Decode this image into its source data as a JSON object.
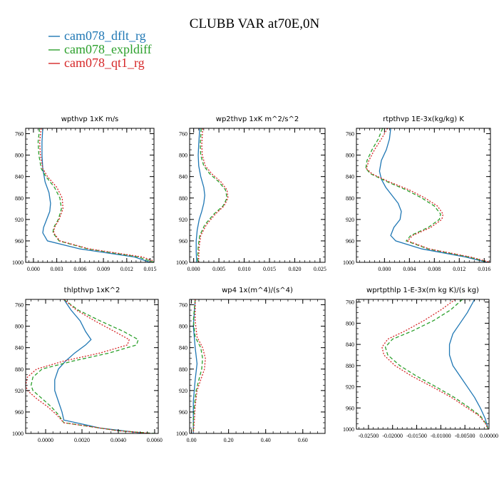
{
  "figure": {
    "title": "CLUBB VAR at70E,0N",
    "legend": [
      {
        "label": "cam078_dflt_rg",
        "color": "#1f77b4",
        "dash": "solid"
      },
      {
        "label": "cam078_expldiff",
        "color": "#2ca02c",
        "dash": "dashed"
      },
      {
        "label": "cam078_qt1_rg",
        "color": "#d62728",
        "dash": "dotted"
      }
    ]
  },
  "chart_data": [
    {
      "type": "line",
      "title": "wpthvp   1xK m/s",
      "xlim": [
        -0.001,
        0.0155
      ],
      "ylim": [
        1000,
        750
      ],
      "xticks": [
        0.0,
        0.003,
        0.006,
        0.009,
        0.012,
        0.015
      ],
      "xtick_labels": [
        "0.000",
        "0.003",
        "0.006",
        "0.009",
        "0.012",
        "0.015"
      ],
      "yticks": [
        760,
        800,
        840,
        880,
        920,
        960,
        1000
      ],
      "series": [
        {
          "name": "cam078_dflt_rg",
          "y": [
            750,
            775,
            800,
            825,
            850,
            870,
            890,
            905,
            920,
            935,
            945,
            960,
            975,
            990,
            1000
          ],
          "x": [
            0.0012,
            0.0011,
            0.0011,
            0.0012,
            0.0015,
            0.002,
            0.0022,
            0.0021,
            0.0017,
            0.0013,
            0.0012,
            0.0018,
            0.006,
            0.013,
            0.015
          ]
        },
        {
          "name": "cam078_expldiff",
          "y": [
            750,
            775,
            800,
            825,
            840,
            860,
            880,
            900,
            920,
            935,
            945,
            960,
            975,
            990,
            1000
          ],
          "x": [
            0.0008,
            0.0006,
            0.0007,
            0.001,
            0.0016,
            0.0027,
            0.0034,
            0.0036,
            0.0032,
            0.0026,
            0.0025,
            0.0033,
            0.007,
            0.0135,
            0.0155
          ]
        },
        {
          "name": "cam078_qt1_rg",
          "y": [
            750,
            775,
            800,
            825,
            840,
            860,
            880,
            900,
            920,
            935,
            945,
            960,
            975,
            990,
            1000
          ],
          "x": [
            0.001,
            0.0008,
            0.0009,
            0.0012,
            0.0018,
            0.003,
            0.0037,
            0.0038,
            0.0033,
            0.0027,
            0.0026,
            0.0034,
            0.0072,
            0.014,
            0.016
          ]
        }
      ]
    },
    {
      "type": "line",
      "title": "wp2thvp   1xK m^2/s^2",
      "xlim": [
        -0.0008,
        0.026
      ],
      "ylim": [
        1000,
        750
      ],
      "xticks": [
        0.0,
        0.005,
        0.01,
        0.015,
        0.02,
        0.025
      ],
      "xtick_labels": [
        "0.000",
        "0.005",
        "0.010",
        "0.015",
        "0.020",
        "0.025"
      ],
      "yticks": [
        760,
        800,
        840,
        880,
        920,
        960,
        1000
      ],
      "series": [
        {
          "name": "cam078_dflt_rg",
          "y": [
            750,
            780,
            800,
            820,
            840,
            860,
            875,
            890,
            905,
            920,
            940,
            960,
            980,
            1000
          ],
          "x": [
            0.0012,
            0.001,
            0.0009,
            0.001,
            0.0014,
            0.002,
            0.0022,
            0.002,
            0.0016,
            0.0011,
            0.0007,
            0.0005,
            0.0005,
            0.0006
          ]
        },
        {
          "name": "cam078_expldiff",
          "y": [
            750,
            780,
            800,
            820,
            835,
            850,
            865,
            880,
            895,
            910,
            930,
            950,
            970,
            990,
            1000
          ],
          "x": [
            0.0015,
            0.0013,
            0.0014,
            0.002,
            0.0032,
            0.005,
            0.0063,
            0.0066,
            0.0058,
            0.004,
            0.0022,
            0.0012,
            0.0009,
            0.0008,
            0.0008
          ]
        },
        {
          "name": "cam078_qt1_rg",
          "y": [
            750,
            780,
            800,
            820,
            835,
            850,
            865,
            880,
            895,
            910,
            930,
            950,
            970,
            990,
            1000
          ],
          "x": [
            0.0018,
            0.0016,
            0.0017,
            0.0023,
            0.0036,
            0.0054,
            0.0066,
            0.0068,
            0.006,
            0.0043,
            0.0025,
            0.0014,
            0.0011,
            0.001,
            0.001
          ]
        }
      ]
    },
    {
      "type": "line",
      "title": "rtpthvp   1E-3x(kg/kg) K",
      "xlim": [
        -0.0045,
        0.017
      ],
      "ylim": [
        1000,
        750
      ],
      "xticks": [
        0.0,
        0.004,
        0.008,
        0.012,
        0.016
      ],
      "xtick_labels": [
        "0.000",
        "0.004",
        "0.008",
        "0.012",
        "0.016"
      ],
      "yticks": [
        800,
        840,
        880,
        920,
        960,
        1000
      ],
      "extra_yticks": [
        {
          "value": 760,
          "label": "760"
        }
      ],
      "series": [
        {
          "name": "cam078_dflt_rg",
          "y": [
            750,
            770,
            790,
            810,
            830,
            845,
            860,
            875,
            890,
            905,
            920,
            935,
            950,
            960,
            975,
            990,
            1000
          ],
          "x": [
            0.001,
            0.0008,
            0.0003,
            -0.0005,
            -0.0008,
            -0.0005,
            0.0002,
            0.0012,
            0.0022,
            0.0027,
            0.0025,
            0.0015,
            0.001,
            0.0018,
            0.006,
            0.013,
            0.0165
          ]
        },
        {
          "name": "cam078_expldiff",
          "y": [
            750,
            770,
            790,
            810,
            825,
            835,
            850,
            865,
            880,
            895,
            910,
            920,
            935,
            950,
            960,
            975,
            990,
            1000
          ],
          "x": [
            -0.0003,
            -0.001,
            -0.002,
            -0.0028,
            -0.003,
            -0.0022,
            0.0005,
            0.0035,
            0.006,
            0.008,
            0.009,
            0.0088,
            0.007,
            0.0042,
            0.0035,
            0.007,
            0.0135,
            0.0168
          ]
        },
        {
          "name": "cam078_qt1_rg",
          "y": [
            750,
            770,
            790,
            810,
            825,
            835,
            850,
            865,
            880,
            895,
            910,
            920,
            935,
            950,
            960,
            975,
            990,
            1000
          ],
          "x": [
            0.0005,
            -0.0005,
            -0.0016,
            -0.0025,
            -0.0029,
            -0.002,
            0.0008,
            0.004,
            0.0065,
            0.0085,
            0.0094,
            0.0092,
            0.0074,
            0.0045,
            0.0037,
            0.0072,
            0.0138,
            0.017
          ]
        }
      ]
    },
    {
      "type": "line",
      "title": "thlpthvp   1xK^2",
      "xlim": [
        -0.0011,
        0.0062
      ],
      "ylim": [
        1000,
        750
      ],
      "xticks": [
        0.0,
        0.002,
        0.004,
        0.006
      ],
      "xtick_labels": [
        "0.0000",
        "0.0020",
        "0.0040",
        "0.0060"
      ],
      "yticks": [
        760,
        800,
        840,
        880,
        920,
        960,
        1000
      ],
      "series": [
        {
          "name": "cam078_dflt_rg",
          "y": [
            750,
            770,
            790,
            810,
            825,
            835,
            850,
            865,
            880,
            900,
            920,
            940,
            960,
            975,
            990,
            1000
          ],
          "x": [
            0.001,
            0.0014,
            0.0019,
            0.0022,
            0.0025,
            0.0022,
            0.0016,
            0.0011,
            0.0007,
            0.0005,
            0.0005,
            0.0007,
            0.0009,
            0.001,
            0.003,
            0.0055
          ]
        },
        {
          "name": "cam078_expldiff",
          "y": [
            750,
            770,
            790,
            810,
            825,
            835,
            850,
            865,
            880,
            895,
            910,
            920,
            935,
            950,
            965,
            980,
            995,
            1000
          ],
          "x": [
            0.001,
            0.0018,
            0.003,
            0.0043,
            0.0051,
            0.005,
            0.0035,
            0.0015,
            -0.0002,
            -0.0007,
            -0.0008,
            -0.0007,
            -0.0002,
            0.0003,
            0.0007,
            0.001,
            0.004,
            0.006
          ]
        },
        {
          "name": "cam078_qt1_rg",
          "y": [
            750,
            770,
            790,
            810,
            825,
            835,
            850,
            865,
            880,
            895,
            910,
            920,
            935,
            950,
            965,
            980,
            995,
            1000
          ],
          "x": [
            0.001,
            0.0017,
            0.0027,
            0.0038,
            0.0046,
            0.0045,
            0.003,
            0.001,
            -0.0005,
            -0.001,
            -0.0011,
            -0.001,
            -0.0005,
            0.0001,
            0.0006,
            0.001,
            0.004,
            0.0058
          ]
        }
      ]
    },
    {
      "type": "line",
      "title": "wp4   1x(m^4)/(s^4)",
      "xlim": [
        -0.01,
        0.72
      ],
      "ylim": [
        1000,
        750
      ],
      "xticks": [
        0.0,
        0.2,
        0.4,
        0.6
      ],
      "xtick_labels": [
        "0.00",
        "0.20",
        "0.40",
        "0.60"
      ],
      "yticks": [
        760,
        800,
        840,
        880,
        920,
        960,
        1000
      ],
      "series": [
        {
          "name": "cam078_dflt_rg",
          "y": [
            750,
            800,
            840,
            870,
            900,
            940,
            980,
            1000
          ],
          "x": [
            0.02,
            0.01,
            0.02,
            0.03,
            0.02,
            0.01,
            0.01,
            0.01
          ]
        },
        {
          "name": "cam078_expldiff",
          "y": [
            750,
            790,
            820,
            840,
            860,
            880,
            900,
            920,
            950,
            980,
            1000
          ],
          "x": [
            0.02,
            0.01,
            0.02,
            0.05,
            0.06,
            0.055,
            0.04,
            0.025,
            0.015,
            0.01,
            0.01
          ]
        },
        {
          "name": "cam078_qt1_rg",
          "y": [
            750,
            790,
            820,
            840,
            860,
            880,
            900,
            920,
            950,
            980,
            1000
          ],
          "x": [
            0.02,
            0.02,
            0.03,
            0.06,
            0.075,
            0.07,
            0.05,
            0.03,
            0.02,
            0.015,
            0.01
          ]
        }
      ]
    },
    {
      "type": "line",
      "title": "wprtpthlp   1-E-3x(m kg K)/(s kg)",
      "xlim": [
        -0.0275,
        0.0
      ],
      "ylim": [
        1000,
        755
      ],
      "xticks": [
        -0.025,
        -0.02,
        -0.015,
        -0.01,
        -0.005,
        0.0
      ],
      "xtick_labels": [
        "-0.02500",
        "-0.02000",
        "-0.01500",
        "-0.01000",
        "-0.00500",
        "0.00000"
      ],
      "yticks": [
        760,
        800,
        840,
        880,
        920,
        960,
        1000
      ],
      "series": [
        {
          "name": "cam078_dflt_rg",
          "y": [
            755,
            780,
            800,
            820,
            840,
            860,
            880,
            900,
            920,
            940,
            960,
            980,
            995,
            1000
          ],
          "x": [
            -0.003,
            -0.0045,
            -0.006,
            -0.0075,
            -0.0082,
            -0.0082,
            -0.0075,
            -0.006,
            -0.0045,
            -0.003,
            -0.0018,
            -0.0008,
            -0.0003,
            -0.0002
          ]
        },
        {
          "name": "cam078_expldiff",
          "y": [
            755,
            775,
            795,
            815,
            830,
            845,
            860,
            880,
            900,
            920,
            940,
            960,
            975,
            990,
            1000
          ],
          "x": [
            -0.0055,
            -0.008,
            -0.0115,
            -0.016,
            -0.02,
            -0.0215,
            -0.021,
            -0.0185,
            -0.015,
            -0.011,
            -0.0072,
            -0.004,
            -0.0018,
            -0.0006,
            -0.0002
          ]
        },
        {
          "name": "cam078_qt1_rg",
          "y": [
            755,
            775,
            795,
            815,
            830,
            845,
            860,
            880,
            900,
            920,
            940,
            960,
            975,
            990,
            1000
          ],
          "x": [
            -0.007,
            -0.01,
            -0.0135,
            -0.0175,
            -0.021,
            -0.0222,
            -0.0218,
            -0.0195,
            -0.016,
            -0.0118,
            -0.0078,
            -0.0045,
            -0.002,
            -0.0007,
            -0.0002
          ]
        }
      ]
    }
  ]
}
